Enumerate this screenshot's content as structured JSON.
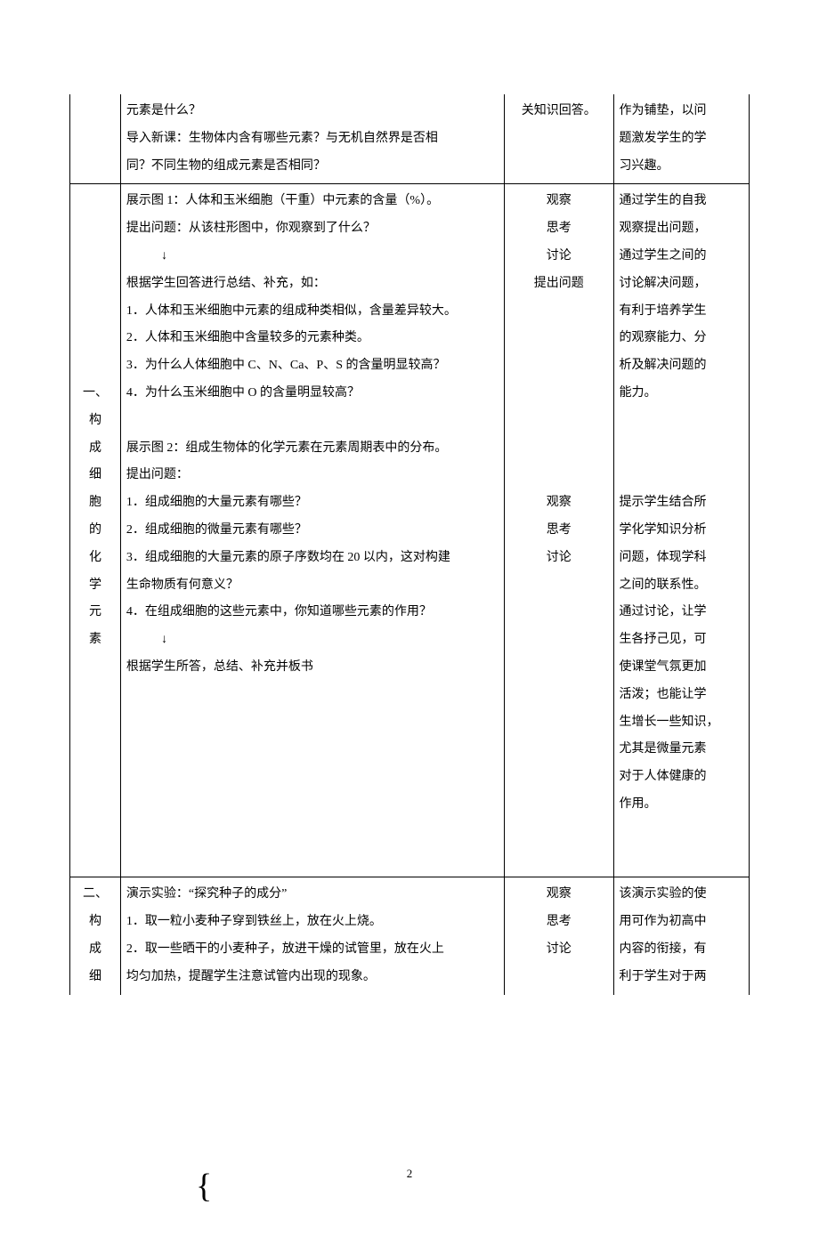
{
  "rowA": {
    "col2": {
      "l1": "元素是什么？",
      "l2": "导入新课：生物体内含有哪些元素？与无机自然界是否相",
      "l3": "同？不同生物的组成元素是否相同？"
    },
    "col3": "关知识回答。",
    "col4": {
      "l1": "作为铺垫，以问",
      "l2": "题激发学生的学",
      "l3": "习兴趣。"
    }
  },
  "rowB": {
    "col1": {
      "c1": "一、",
      "c2": "构",
      "c3": "成",
      "c4": "细",
      "c5": "胞",
      "c6": "的",
      "c7": "化",
      "c8": "学",
      "c9": "元",
      "c10": "素"
    },
    "col2": {
      "l1": "展示图 1：人体和玉米细胞（干重）中元素的含量（%）。",
      "l2": "提出问题：从该柱形图中，你观察到了什么？",
      "arrow1": "↓",
      "l3": "根据学生回答进行总结、补充，如：",
      "l4": "1．人体和玉米细胞中元素的组成种类相似，含量差异较大。",
      "l5": "2．人体和玉米细胞中含量较多的元素种类。",
      "l6": "3．为什么人体细胞中 C、N、Ca、P、S 的含量明显较高？",
      "l7": "4．为什么玉米细胞中 O 的含量明显较高？",
      "blank1": " ",
      "l8": "展示图 2：组成生物体的化学元素在元素周期表中的分布。",
      "l9": "提出问题：",
      "l10": "1．组成细胞的大量元素有哪些？",
      "l11": "2．组成细胞的微量元素有哪些？",
      "l12": "3．组成细胞的大量元素的原子序数均在 20 以内，这对构建",
      "l13": "生命物质有何意义？",
      "l14": "4．在组成细胞的这些元素中，你知道哪些元素的作用？",
      "arrow2": "↓",
      "l15": "根据学生所答，总结、补充并板书"
    },
    "col3": {
      "l1": "观察",
      "l2": "思考",
      "l3": "讨论",
      "l4": "提出问题",
      "gap": " ",
      "l5": "观察",
      "l6": "思考",
      "l7": "讨论"
    },
    "col4": {
      "l1": "通过学生的自我",
      "l2": "观察提出问题，",
      "l3": "通过学生之间的",
      "l4": "讨论解决问题，",
      "l5": "有利于培养学生",
      "l6": "的观察能力、分",
      "l7": "析及解决问题的",
      "l8": "能力。",
      "gap": " ",
      "l9": "提示学生结合所",
      "l10": "学化学知识分析",
      "l11": "问题，体现学科",
      "l12": "之间的联系性。",
      "l13": "通过讨论，让学",
      "l14": "生各抒己见，可",
      "l15": "使课堂气氛更加",
      "l16": "活泼；也能让学",
      "l17": "生增长一些知识，",
      "l18": "尤其是微量元素",
      "l19": "对于人体健康的",
      "l20": "作用。"
    }
  },
  "rowD": {
    "col1": {
      "c1": "二、",
      "c2": "构",
      "c3": "成",
      "c4": "细"
    },
    "col2": {
      "l1": "演示实验：“探究种子的成分”",
      "l2": "1．取一粒小麦种子穿到铁丝上，放在火上烧。",
      "l3": "2．取一些晒干的小麦种子，放进干燥的试管里，放在火上",
      "l4": "均匀加热，提醒学生注意试管内出现的现象。"
    },
    "col3": {
      "l1": "观察",
      "l2": "思考",
      "l3": "讨论"
    },
    "col4": {
      "l1": "该演示实验的使",
      "l2": "用可作为初高中",
      "l3": "内容的衔接，有",
      "l4": "利于学生对于两"
    }
  },
  "pageNumber": "2",
  "braceSymbol": "{"
}
